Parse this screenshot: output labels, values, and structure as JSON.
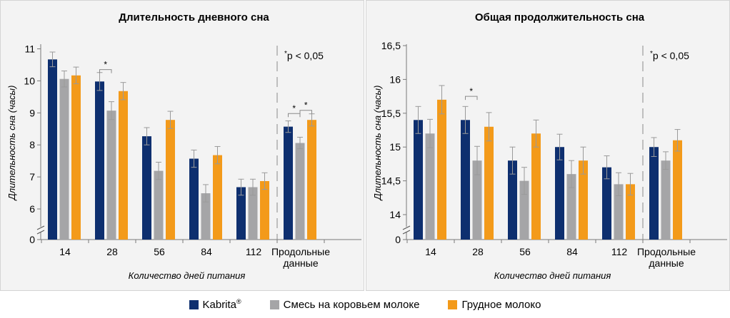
{
  "colors": {
    "kabrita": "#0e2f6f",
    "cow_milk": "#a5a5a7",
    "breast_milk": "#f39a1a",
    "error_bar": "#9a9a9a",
    "panel_bg": "#f3f3f3"
  },
  "legend": {
    "kabrita_label": "Kabrita",
    "kabrita_reg": "®",
    "cow_label": "Смесь на коровьем молоке",
    "breast_label": "Грудное молоко"
  },
  "chart_data": [
    {
      "type": "bar",
      "title": "Длительность дневного сна",
      "xlabel": "Количество дней питания",
      "ylabel": "Длительность сна (часы)",
      "ylim": [
        5.4,
        11.1
      ],
      "broken_axis": true,
      "yticks": [
        6,
        7,
        8,
        9,
        10,
        11
      ],
      "yticks_labels": [
        "6",
        "7",
        "8",
        "9",
        "10",
        "11"
      ],
      "zero_label": "0",
      "categories": [
        "14",
        "28",
        "56",
        "84",
        "112",
        "Продольные данные"
      ],
      "series": [
        {
          "name": "Kabrita",
          "values": [
            10.67,
            9.98,
            8.27,
            7.57,
            6.68,
            8.57
          ],
          "errors": [
            0.23,
            0.28,
            0.27,
            0.27,
            0.25,
            0.18
          ]
        },
        {
          "name": "Смесь на коровьем молоке",
          "values": [
            10.06,
            9.07,
            7.19,
            6.49,
            6.68,
            8.06
          ],
          "errors": [
            0.25,
            0.28,
            0.27,
            0.27,
            0.25,
            0.18
          ]
        },
        {
          "name": "Грудное молоко",
          "values": [
            10.17,
            9.68,
            8.78,
            7.68,
            6.87,
            8.78
          ],
          "errors": [
            0.26,
            0.27,
            0.27,
            0.27,
            0.26,
            0.19
          ]
        }
      ],
      "annotation": "p < 0,05",
      "annotation_star": "*",
      "significance": [
        {
          "category": "28",
          "pair": [
            "Kabrita",
            "Смесь на коровьем молоке"
          ],
          "level": 10.35,
          "label": "*"
        },
        {
          "category": "Продольные данные",
          "pair": [
            "Kabrita",
            "Смесь на коровьем молоке"
          ],
          "level": 8.98,
          "label": "*"
        },
        {
          "category": "Продольные данные",
          "pair": [
            "Смесь на коровьем молоке",
            "Грудное молоко"
          ],
          "level": 9.08,
          "label": "*"
        }
      ]
    },
    {
      "type": "bar",
      "title": "Общая продолжительность сна",
      "xlabel": "Количество дней питания",
      "ylabel": "Длительность сна (часы)",
      "ylim": [
        13.8,
        16.5
      ],
      "broken_axis": true,
      "yticks": [
        14,
        14.5,
        15,
        15.5,
        16,
        16.5
      ],
      "yticks_labels": [
        "14",
        "14,5",
        "15",
        "15,5",
        "16",
        "16,5"
      ],
      "zero_label": "0",
      "categories": [
        "14",
        "28",
        "56",
        "84",
        "112",
        "Продольные данные"
      ],
      "series": [
        {
          "name": "Kabrita",
          "values": [
            15.4,
            15.4,
            14.8,
            15.0,
            14.7,
            15.0
          ],
          "errors": [
            0.2,
            0.2,
            0.2,
            0.19,
            0.17,
            0.14
          ]
        },
        {
          "name": "Смесь на коровьем молоке",
          "values": [
            15.2,
            14.8,
            14.5,
            14.6,
            14.45,
            14.8
          ],
          "errors": [
            0.21,
            0.21,
            0.2,
            0.2,
            0.17,
            0.13
          ]
        },
        {
          "name": "Грудное молоко",
          "values": [
            15.7,
            15.3,
            15.2,
            14.8,
            14.45,
            15.1
          ],
          "errors": [
            0.21,
            0.21,
            0.2,
            0.2,
            0.16,
            0.16
          ]
        }
      ],
      "annotation": "p < 0,05",
      "annotation_star": "*",
      "significance": [
        {
          "category": "28",
          "pair": [
            "Kabrita",
            "Смесь на коровьем молоке"
          ],
          "level": 15.75,
          "label": "*"
        }
      ]
    }
  ]
}
